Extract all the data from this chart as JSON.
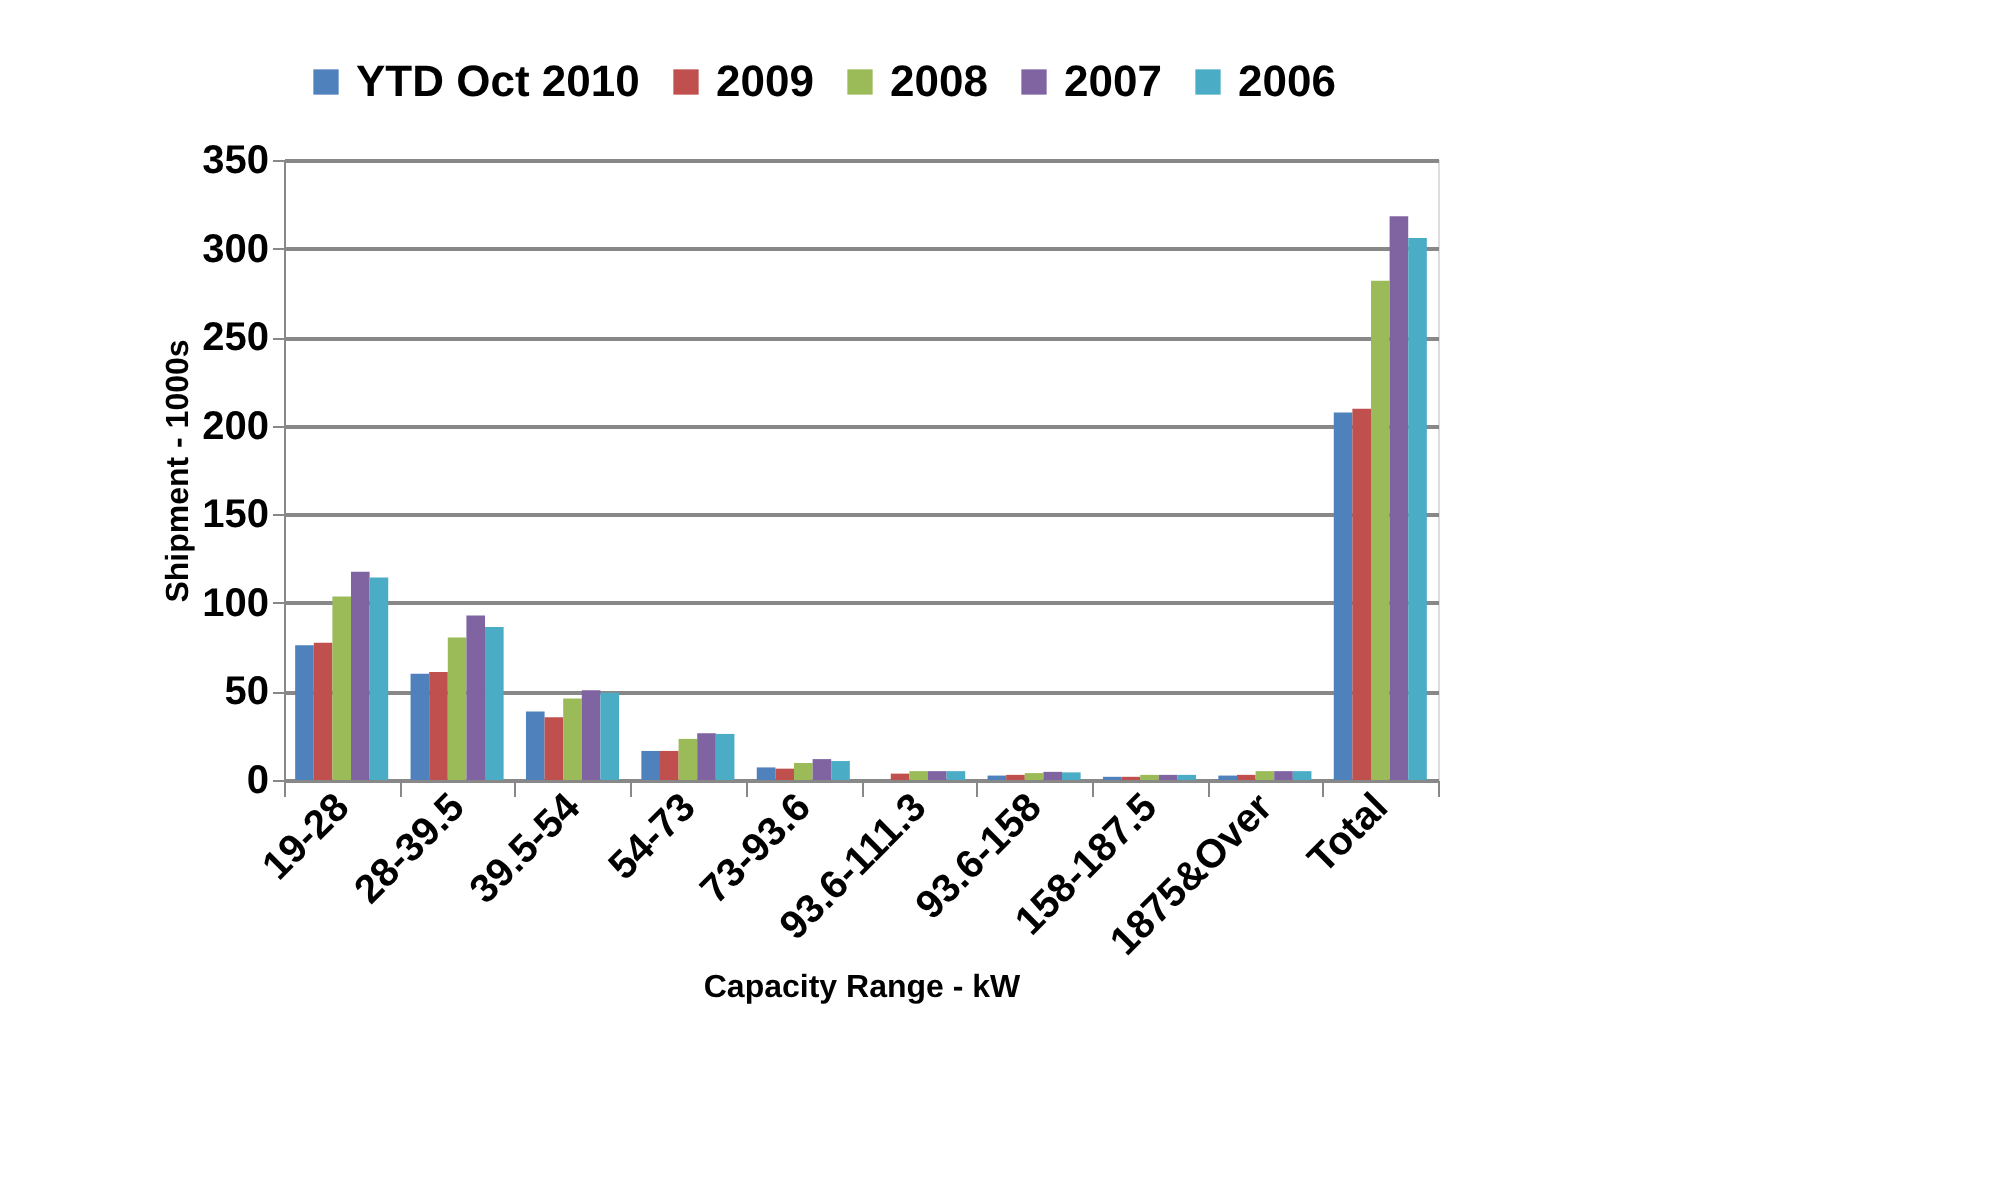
{
  "chart_data": {
    "type": "bar",
    "xlabel": "Capacity Range - kW",
    "ylabel": "Shipment - 1000s",
    "categories": [
      "19-28",
      "28-39.5",
      "39.5-54",
      "54-73",
      "73-93.6",
      "93.6-111.3",
      "93.6-158",
      "158-187.5",
      "1875&Over",
      "Total"
    ],
    "series": [
      {
        "name": "YTD Oct 2010",
        "color": "#4f81bd",
        "values": [
          76,
          60,
          38.6,
          16.4,
          7.1,
          null,
          2.5,
          1.8,
          2.5,
          207.5
        ]
      },
      {
        "name": "2009",
        "color": "#c0504d",
        "values": [
          77.5,
          61,
          35.4,
          16.4,
          6.4,
          3.6,
          2.9,
          1.8,
          2.9,
          209.6
        ]
      },
      {
        "name": "2008",
        "color": "#9bbb59",
        "values": [
          103.6,
          80.4,
          46,
          23.2,
          9.6,
          5,
          3.9,
          2.9,
          5,
          281.8
        ]
      },
      {
        "name": "2007",
        "color": "#8064a2",
        "values": [
          117.5,
          92.9,
          50.7,
          26.4,
          11.8,
          5,
          4.6,
          2.9,
          5,
          318.2
        ]
      },
      {
        "name": "2006",
        "color": "#4bacc6",
        "values": [
          114.3,
          86.4,
          49.3,
          26,
          10.7,
          5,
          4.3,
          2.9,
          5,
          306
        ]
      }
    ],
    "ylim": [
      0,
      350
    ],
    "yticks": [
      0,
      50,
      100,
      150,
      200,
      250,
      300,
      350
    ],
    "grid": "y",
    "legend": "top"
  }
}
